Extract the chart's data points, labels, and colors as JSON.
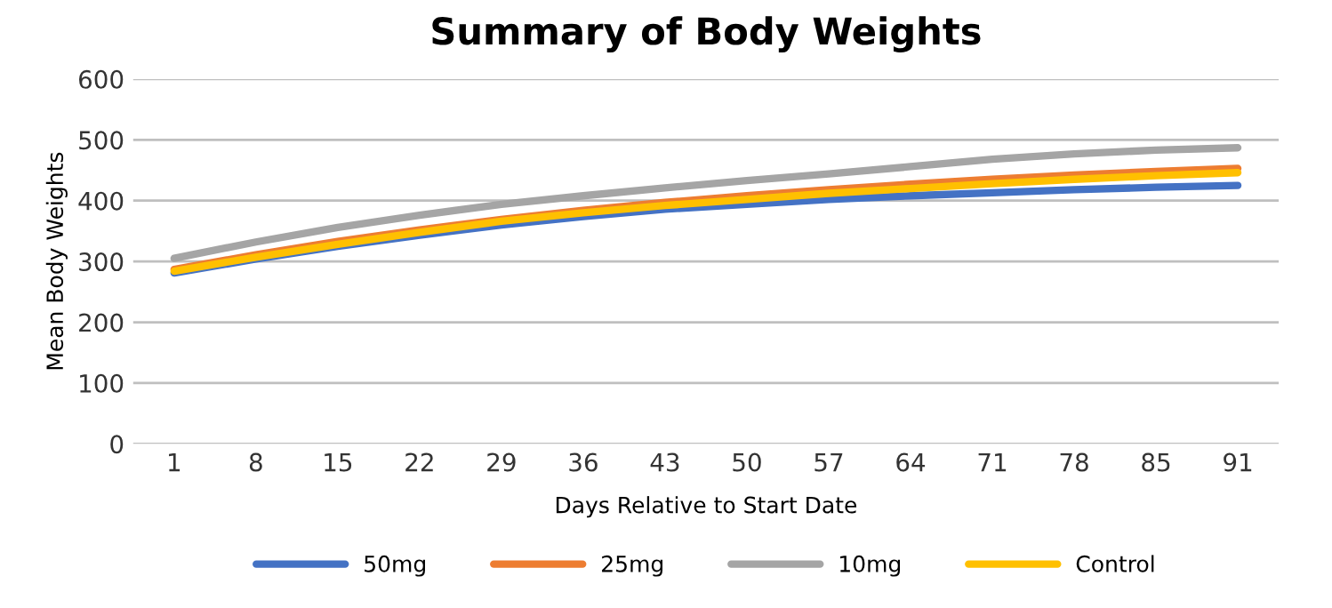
{
  "chart_data": {
    "type": "line",
    "title": "Summary of Body Weights",
    "xlabel": "Days Relative to Start Date",
    "ylabel": "Mean Body Weights",
    "categories": [
      "1",
      "8",
      "15",
      "22",
      "29",
      "36",
      "43",
      "50",
      "57",
      "64",
      "71",
      "78",
      "85",
      "91"
    ],
    "series": [
      {
        "name": "50mg",
        "color": "#4472c4",
        "values": [
          281,
          304,
          325,
          343,
          360,
          374,
          386,
          394,
          402,
          408,
          413,
          418,
          422,
          425
        ]
      },
      {
        "name": "25mg",
        "color": "#ed7d31",
        "values": [
          287,
          311,
          333,
          352,
          369,
          384,
          397,
          408,
          418,
          427,
          435,
          442,
          448,
          453
        ]
      },
      {
        "name": "10mg",
        "color": "#a5a5a5",
        "values": [
          305,
          332,
          356,
          376,
          394,
          408,
          421,
          433,
          444,
          456,
          468,
          477,
          483,
          487
        ]
      },
      {
        "name": "Control",
        "color": "#ffc000",
        "values": [
          284,
          307,
          328,
          348,
          366,
          380,
          392,
          402,
          412,
          420,
          428,
          435,
          441,
          446
        ]
      }
    ],
    "ylim": [
      0,
      600
    ],
    "yticks": [
      0,
      100,
      200,
      300,
      400,
      500,
      600
    ],
    "grid": "y",
    "legend": "bottom",
    "marker": "none",
    "line_style": "solid"
  }
}
